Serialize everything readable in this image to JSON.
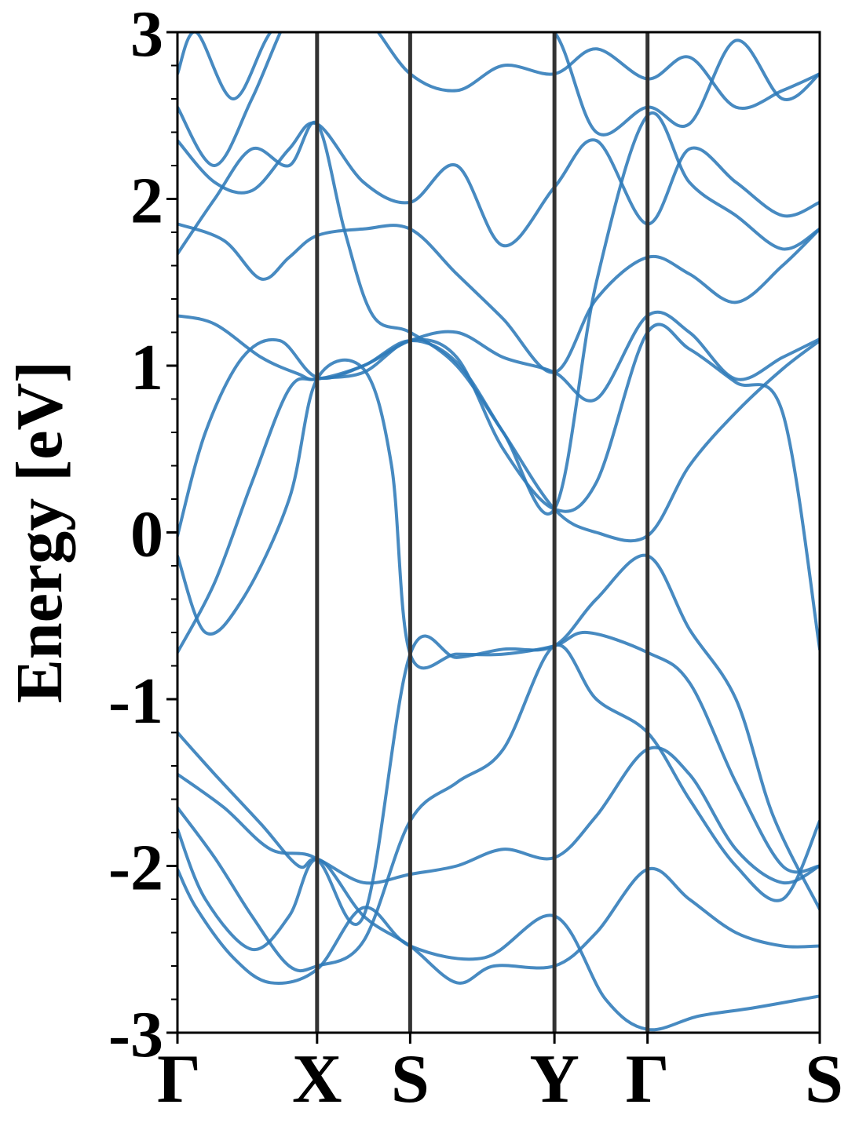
{
  "chart_data": {
    "type": "line",
    "ylabel": "Energy [eV]",
    "ylim": [
      -3,
      3
    ],
    "yticks": [
      -3,
      -2,
      -1,
      0,
      1,
      2,
      3
    ],
    "ytick_labels": [
      "-3",
      "-2",
      "-1",
      "0",
      "1",
      "2",
      "3"
    ],
    "xlim": [
      0,
      6.9
    ],
    "kpoints": [
      {
        "label": "Γ",
        "x": 0.0
      },
      {
        "label": "X",
        "x": 1.5
      },
      {
        "label": "S",
        "x": 2.5
      },
      {
        "label": "Y",
        "x": 4.05
      },
      {
        "label": "Γ",
        "x": 5.05
      },
      {
        "label": "S",
        "x": 6.9
      }
    ],
    "grid": false,
    "legend": "none",
    "colors": {
      "band": "#2e7ab8",
      "kline": "#333333",
      "axis": "#000000"
    },
    "series": [
      {
        "x": [
          0,
          0.2,
          0.6,
          1.0,
          1.5,
          2.0,
          2.5,
          3.3,
          4.05,
          4.6,
          5.05,
          5.6,
          6.2,
          6.9
        ],
        "y": [
          -2.02,
          -2.25,
          -2.55,
          -2.7,
          -2.62,
          -2.25,
          -2.48,
          -2.55,
          -2.3,
          -2.8,
          -2.98,
          -2.9,
          -2.85,
          -2.78
        ]
      },
      {
        "x": [
          0,
          0.3,
          0.8,
          1.2,
          1.5,
          2.0,
          2.5,
          3.0,
          3.4,
          4.05,
          4.5,
          5.05,
          5.5,
          6.0,
          6.5,
          6.9
        ],
        "y": [
          -1.78,
          -2.2,
          -2.5,
          -2.3,
          -1.96,
          -2.3,
          -2.48,
          -2.7,
          -2.6,
          -2.6,
          -2.4,
          -2.02,
          -2.2,
          -2.4,
          -2.48,
          -2.48
        ]
      },
      {
        "x": [
          0,
          0.4,
          0.8,
          1.2,
          1.5,
          2.0,
          2.5,
          3.0,
          3.5,
          4.05,
          4.5,
          5.05,
          5.5,
          6.0,
          6.5,
          6.9
        ],
        "y": [
          -1.65,
          -1.95,
          -2.3,
          -2.6,
          -2.6,
          -2.45,
          -1.73,
          -1.5,
          -1.3,
          -0.68,
          -1.0,
          -1.2,
          -1.6,
          -2.0,
          -2.2,
          -1.73
        ]
      },
      {
        "x": [
          0,
          0.5,
          1.0,
          1.5,
          2.0,
          2.5,
          3.0,
          3.5,
          4.05,
          4.5,
          5.05,
          5.5,
          6.0,
          6.4,
          6.9
        ],
        "y": [
          -1.45,
          -1.65,
          -1.9,
          -1.96,
          -2.3,
          -0.73,
          -0.75,
          -0.7,
          -0.68,
          -0.4,
          -0.14,
          -0.58,
          -1.0,
          -1.7,
          -2.26
        ]
      },
      {
        "x": [
          0,
          0.4,
          0.9,
          1.3,
          1.5,
          2.0,
          2.5,
          3.0,
          3.5,
          4.05,
          4.5,
          5.05,
          5.5,
          6.0,
          6.5,
          6.9
        ],
        "y": [
          -1.2,
          -1.45,
          -1.75,
          -2.0,
          -1.96,
          -2.1,
          -2.05,
          -2.0,
          -1.9,
          -1.95,
          -1.7,
          -1.3,
          -1.45,
          -1.9,
          -2.1,
          -2.0
        ]
      },
      {
        "x": [
          0,
          0.3,
          0.7,
          1.2,
          1.5,
          2.0,
          2.3,
          2.5,
          3.0,
          3.5,
          4.05,
          4.4,
          5.05,
          5.5,
          6.0,
          6.5,
          6.9
        ],
        "y": [
          -0.14,
          -0.6,
          -0.4,
          0.2,
          0.92,
          0.98,
          0.4,
          -0.73,
          -0.73,
          -0.73,
          -0.68,
          -0.6,
          -0.72,
          -0.9,
          -1.5,
          -2.0,
          -2.0
        ]
      },
      {
        "x": [
          0,
          0.4,
          0.8,
          1.2,
          1.5,
          2.0,
          2.5,
          3.0,
          3.5,
          4.05,
          4.5,
          5.05,
          5.5,
          6.0,
          6.5,
          6.9
        ],
        "y": [
          -0.72,
          -0.3,
          0.3,
          0.86,
          0.92,
          0.96,
          1.15,
          1.05,
          0.5,
          0.14,
          0.3,
          1.2,
          1.1,
          0.9,
          0.72,
          -0.7
        ]
      },
      {
        "x": [
          0,
          0.3,
          0.7,
          1.1,
          1.5,
          2.0,
          2.5,
          3.0,
          3.5,
          4.05,
          4.5,
          5.05,
          5.5,
          6.0,
          6.5,
          6.9
        ],
        "y": [
          -0.02,
          0.6,
          1.05,
          1.15,
          0.93,
          1.0,
          1.15,
          1.02,
          0.6,
          0.14,
          0.0,
          -0.02,
          0.4,
          0.72,
          0.98,
          1.15
        ]
      },
      {
        "x": [
          0,
          0.4,
          0.9,
          1.3,
          1.5,
          2.0,
          2.5,
          3.0,
          3.5,
          4.05,
          4.5,
          5.05,
          5.5,
          6.0,
          6.5,
          6.9
        ],
        "y": [
          1.3,
          1.25,
          1.05,
          0.95,
          0.92,
          1.0,
          1.15,
          1.2,
          1.05,
          0.96,
          0.8,
          1.3,
          1.2,
          0.92,
          1.05,
          1.16
        ]
      },
      {
        "x": [
          0,
          0.5,
          0.9,
          1.2,
          1.5,
          2.0,
          2.5,
          3.0,
          3.5,
          4.05,
          4.5,
          5.05,
          5.5,
          6.0,
          6.5,
          6.9
        ],
        "y": [
          1.85,
          1.75,
          1.52,
          1.65,
          1.78,
          1.82,
          1.82,
          1.55,
          1.28,
          0.96,
          1.4,
          1.65,
          1.55,
          1.38,
          1.6,
          1.82
        ]
      },
      {
        "x": [
          0,
          0.4,
          0.8,
          1.2,
          1.5,
          1.8,
          2.1,
          2.5,
          3.0,
          3.5,
          4.05,
          4.5,
          5.05,
          5.5,
          6.0,
          6.5,
          6.9
        ],
        "y": [
          1.67,
          2.0,
          2.3,
          2.2,
          2.45,
          1.8,
          1.3,
          1.2,
          1.0,
          0.6,
          0.14,
          1.5,
          2.5,
          2.1,
          1.9,
          1.7,
          1.82
        ]
      },
      {
        "x": [
          0,
          0.4,
          0.8,
          1.2,
          1.5,
          2.0,
          2.5,
          3.0,
          3.5,
          4.05,
          4.5,
          5.05,
          5.5,
          6.0,
          6.5,
          6.9
        ],
        "y": [
          2.35,
          2.1,
          2.05,
          2.3,
          2.45,
          2.1,
          1.98,
          2.2,
          1.72,
          2.07,
          2.35,
          1.85,
          2.3,
          2.1,
          1.9,
          1.98
        ]
      },
      {
        "x": [
          0,
          0.4,
          0.8,
          1.2,
          1.5,
          2.0,
          2.5,
          3.0,
          3.5,
          4.05,
          4.5,
          5.05,
          5.5,
          6.0,
          6.5,
          6.9
        ],
        "y": [
          2.55,
          2.2,
          2.6,
          3.1,
          3.2,
          3.1,
          2.75,
          2.65,
          2.8,
          2.75,
          2.9,
          2.72,
          2.85,
          2.55,
          2.65,
          2.75
        ]
      },
      {
        "x": [
          0,
          0.2,
          0.6,
          1.0,
          1.5,
          2.0,
          2.5,
          3.0,
          3.5,
          4.05,
          4.5,
          5.05,
          5.5,
          6.0,
          6.5,
          6.9
        ],
        "y": [
          2.75,
          3.0,
          2.6,
          3.0,
          3.3,
          3.2,
          3.1,
          3.05,
          3.1,
          3.0,
          2.4,
          2.55,
          2.45,
          2.95,
          2.6,
          2.75
        ]
      }
    ]
  }
}
